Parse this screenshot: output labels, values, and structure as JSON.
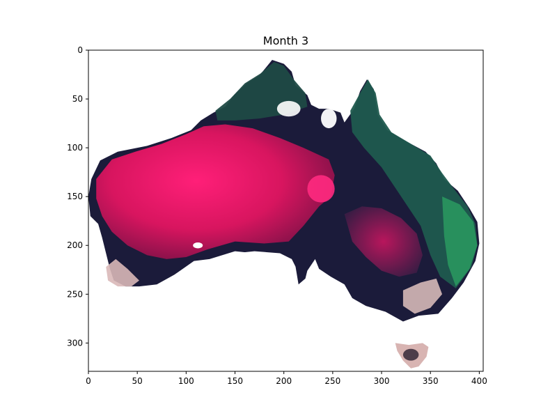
{
  "chart_data": {
    "type": "heatmap",
    "title": "Month 3",
    "xlabel": "",
    "ylabel": "",
    "xlim": [
      0,
      404
    ],
    "ylim": [
      0,
      329
    ],
    "y_inverted": true,
    "xticks": [
      0,
      50,
      100,
      150,
      200,
      250,
      300,
      350,
      400
    ],
    "yticks": [
      0,
      50,
      100,
      150,
      200,
      250,
      300
    ],
    "grid": false,
    "description_colors": {
      "background": "#ffffff",
      "interior_pink": "#e8156a",
      "dark_navy": "#1a1a3c",
      "teal_green": "#2f7a6a",
      "bright_green": "#2fbf6a",
      "pale_pink": "#e8c2c2"
    }
  }
}
